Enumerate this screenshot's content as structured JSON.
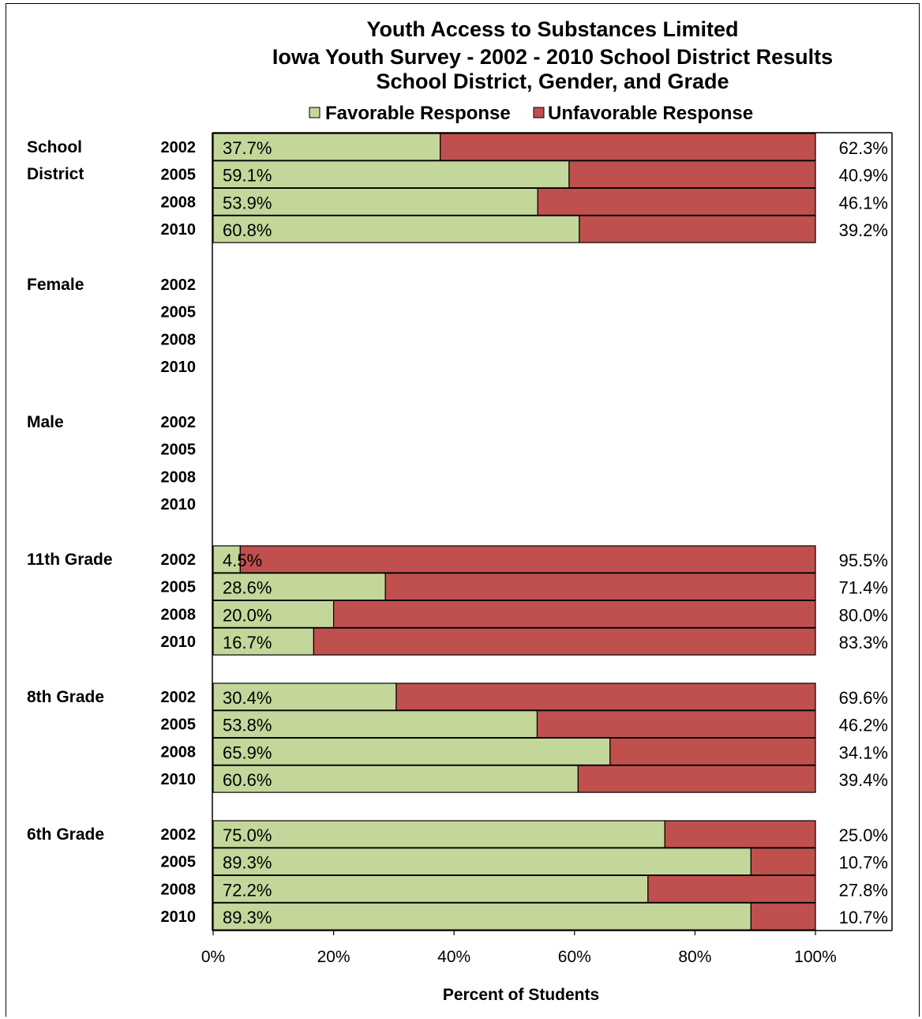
{
  "chart_data": {
    "type": "bar",
    "orientation": "horizontal",
    "stacked": true,
    "title": [
      "Youth Access to Substances Limited",
      "Iowa Youth Survey - 2002 - 2010 School District Results",
      "School District, Gender, and Grade"
    ],
    "xlabel": "Percent of Students",
    "xlim": [
      0,
      100
    ],
    "x_ticks": [
      "0%",
      "20%",
      "40%",
      "60%",
      "80%",
      "100%"
    ],
    "legend_position": "top",
    "series": [
      {
        "name": "Favorable Response",
        "color": "#c4d79b"
      },
      {
        "name": "Unfavorable Response",
        "color": "#c0504d"
      }
    ],
    "groups": [
      {
        "label": "School District",
        "rows": [
          {
            "year": "2002",
            "favorable": 37.7,
            "unfavorable": 62.3,
            "fav_label": "37.7%",
            "unfav_label": "62.3%"
          },
          {
            "year": "2005",
            "favorable": 59.1,
            "unfavorable": 40.9,
            "fav_label": "59.1%",
            "unfav_label": "40.9%"
          },
          {
            "year": "2008",
            "favorable": 53.9,
            "unfavorable": 46.1,
            "fav_label": "53.9%",
            "unfav_label": "46.1%"
          },
          {
            "year": "2010",
            "favorable": 60.8,
            "unfavorable": 39.2,
            "fav_label": "60.8%",
            "unfav_label": "39.2%"
          }
        ]
      },
      {
        "label": "Female",
        "rows": [
          {
            "year": "2002"
          },
          {
            "year": "2005"
          },
          {
            "year": "2008"
          },
          {
            "year": "2010"
          }
        ]
      },
      {
        "label": "Male",
        "rows": [
          {
            "year": "2002"
          },
          {
            "year": "2005"
          },
          {
            "year": "2008"
          },
          {
            "year": "2010"
          }
        ]
      },
      {
        "label": "11th Grade",
        "rows": [
          {
            "year": "2002",
            "favorable": 4.5,
            "unfavorable": 95.5,
            "fav_label": "4.5%",
            "unfav_label": "95.5%"
          },
          {
            "year": "2005",
            "favorable": 28.6,
            "unfavorable": 71.4,
            "fav_label": "28.6%",
            "unfav_label": "71.4%"
          },
          {
            "year": "2008",
            "favorable": 20.0,
            "unfavorable": 80.0,
            "fav_label": "20.0%",
            "unfav_label": "80.0%"
          },
          {
            "year": "2010",
            "favorable": 16.7,
            "unfavorable": 83.3,
            "fav_label": "16.7%",
            "unfav_label": "83.3%"
          }
        ]
      },
      {
        "label": "8th Grade",
        "rows": [
          {
            "year": "2002",
            "favorable": 30.4,
            "unfavorable": 69.6,
            "fav_label": "30.4%",
            "unfav_label": "69.6%"
          },
          {
            "year": "2005",
            "favorable": 53.8,
            "unfavorable": 46.2,
            "fav_label": "53.8%",
            "unfav_label": "46.2%"
          },
          {
            "year": "2008",
            "favorable": 65.9,
            "unfavorable": 34.1,
            "fav_label": "65.9%",
            "unfav_label": "34.1%"
          },
          {
            "year": "2010",
            "favorable": 60.6,
            "unfavorable": 39.4,
            "fav_label": "60.6%",
            "unfav_label": "39.4%"
          }
        ]
      },
      {
        "label": "6th Grade",
        "rows": [
          {
            "year": "2002",
            "favorable": 75.0,
            "unfavorable": 25.0,
            "fav_label": "75.0%",
            "unfav_label": "25.0%"
          },
          {
            "year": "2005",
            "favorable": 89.3,
            "unfavorable": 10.7,
            "fav_label": "89.3%",
            "unfav_label": "10.7%"
          },
          {
            "year": "2008",
            "favorable": 72.2,
            "unfavorable": 27.8,
            "fav_label": "72.2%",
            "unfav_label": "27.8%"
          },
          {
            "year": "2010",
            "favorable": 89.3,
            "unfavorable": 10.7,
            "fav_label": "89.3%",
            "unfav_label": "10.7%"
          }
        ]
      }
    ]
  }
}
